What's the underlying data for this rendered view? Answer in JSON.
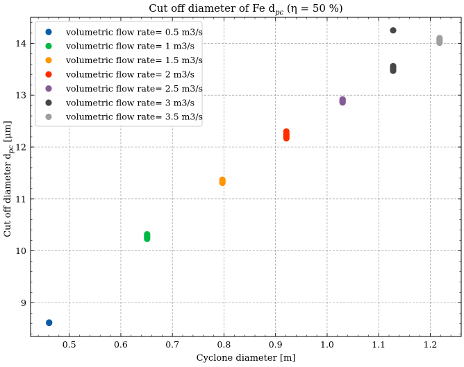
{
  "chart_data": {
    "type": "scatter",
    "title": "Cut off diameter of Fe d",
    "title_sub": "pc",
    "title_rest": " (η = 50 %)",
    "xlabel": "Cyclone diameter [m]",
    "ylabel_main": "Cut off diameter d",
    "ylabel_sub": "pc",
    "ylabel_rest": " [μm]",
    "xlim": [
      0.425,
      1.26
    ],
    "ylim": [
      8.35,
      14.5
    ],
    "xticks": [
      0.5,
      0.6,
      0.7,
      0.8,
      0.9,
      1.0,
      1.1,
      1.2
    ],
    "xtick_labels": [
      "0.5",
      "0.6",
      "0.7",
      "0.8",
      "0.9",
      "1.0",
      "1.1",
      "1.2"
    ],
    "yticks": [
      9,
      10,
      11,
      12,
      13,
      14
    ],
    "ytick_labels": [
      "9",
      "10",
      "11",
      "12",
      "13",
      "14"
    ],
    "grid": true,
    "legend_position": "top-left",
    "series": [
      {
        "name": "volumetric flow rate= 0.5 m3/s",
        "color": "#0c5da5",
        "points": [
          [
            0.461,
            8.61
          ],
          [
            0.461,
            8.62
          ]
        ]
      },
      {
        "name": "volumetric flow rate= 1 m3/s",
        "color": "#00b945",
        "points": [
          [
            0.651,
            10.23
          ],
          [
            0.651,
            10.26
          ],
          [
            0.651,
            10.29
          ],
          [
            0.651,
            10.32
          ]
        ]
      },
      {
        "name": "volumetric flow rate= 1.5 m3/s",
        "color": "#ff9500",
        "points": [
          [
            0.797,
            11.31
          ],
          [
            0.797,
            11.34
          ],
          [
            0.797,
            11.37
          ]
        ]
      },
      {
        "name": "volumetric flow rate= 2 m3/s",
        "color": "#ff2c00",
        "points": [
          [
            0.921,
            12.17
          ],
          [
            0.921,
            12.2
          ],
          [
            0.921,
            12.23
          ],
          [
            0.921,
            12.26
          ],
          [
            0.921,
            12.3
          ]
        ]
      },
      {
        "name": "volumetric flow rate= 2.5 m3/s",
        "color": "#845b97",
        "points": [
          [
            1.03,
            12.86
          ],
          [
            1.03,
            12.88
          ],
          [
            1.03,
            12.9
          ],
          [
            1.03,
            12.92
          ]
        ]
      },
      {
        "name": "volumetric flow rate= 3 m3/s",
        "color": "#474747",
        "points": [
          [
            1.128,
            13.47
          ],
          [
            1.128,
            13.5
          ],
          [
            1.128,
            13.53
          ],
          [
            1.128,
            13.56
          ],
          [
            1.128,
            14.25
          ]
        ]
      },
      {
        "name": "volumetric flow rate= 3.5 m3/s",
        "color": "#9e9e9e",
        "points": [
          [
            1.218,
            14.01
          ],
          [
            1.218,
            14.04
          ],
          [
            1.218,
            14.07
          ],
          [
            1.218,
            14.1
          ]
        ]
      }
    ]
  }
}
